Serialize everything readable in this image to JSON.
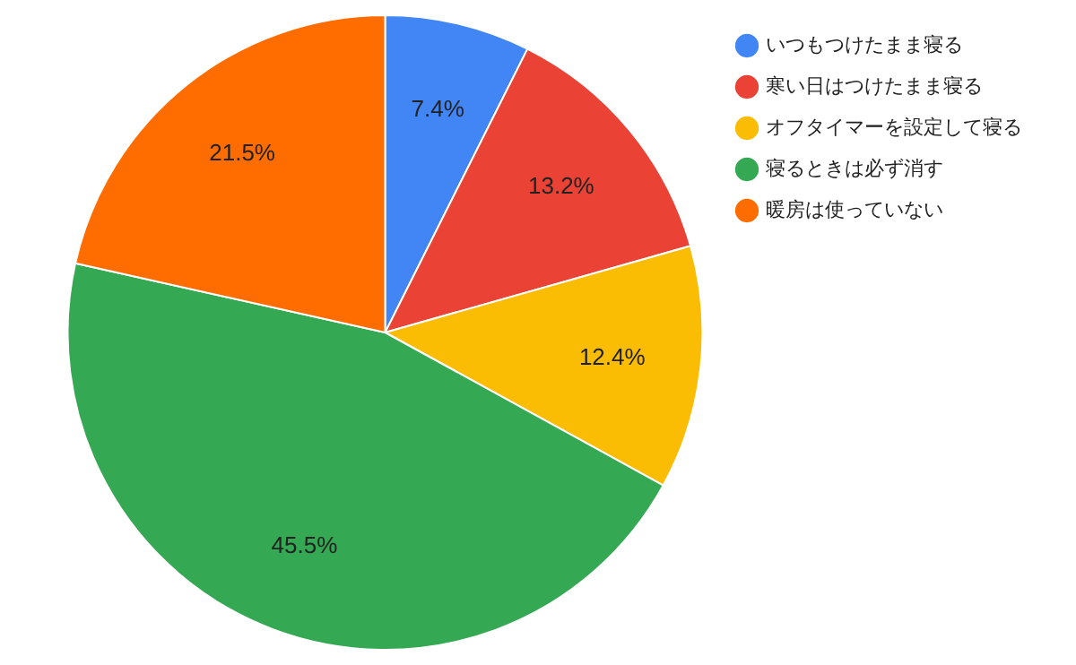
{
  "chart_data": {
    "type": "pie",
    "categories": [
      "いつもつけたまま寝る",
      "寒い日はつけたまま寝る",
      "オフタイマーを設定して寝る",
      "寝るときは必ず消す",
      "暖房は使っていない"
    ],
    "values": [
      7.4,
      13.2,
      12.4,
      45.5,
      21.5
    ],
    "colors": [
      "#4285f4",
      "#ea4335",
      "#fbbc04",
      "#34a853",
      "#ff6d01"
    ],
    "value_labels": [
      "7.4%",
      "13.2%",
      "12.4%",
      "45.5%",
      "21.5%"
    ],
    "legend": "top right"
  }
}
